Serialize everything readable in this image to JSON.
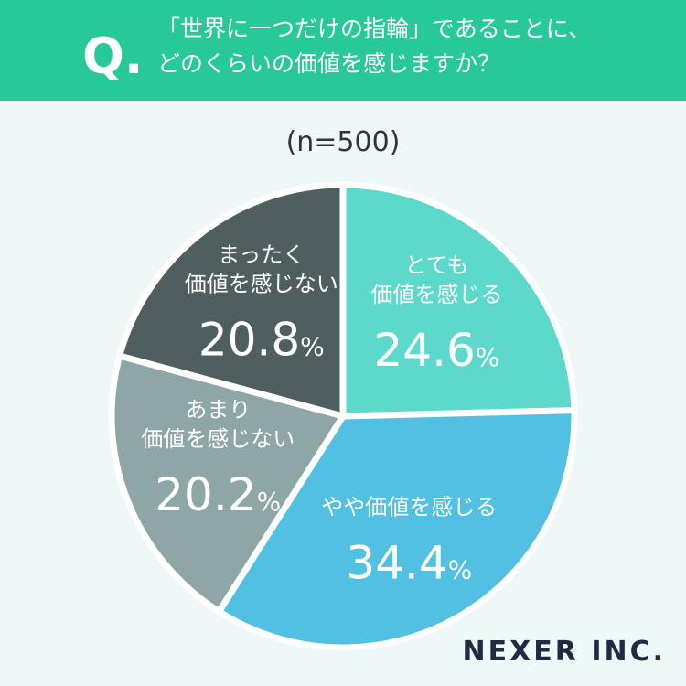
{
  "mark": "Q.",
  "logo": "NEXER INC.",
  "chart_data": {
    "type": "pie",
    "title": "「世界に一つだけの指輪」であることに、\nどのくらいの価値を感じますか？",
    "subtitle": "(n=500)",
    "categories": [
      "とても\n価値を感じる",
      "やや価値を感じる",
      "あまり\n価値を感じない",
      "まったく\n価値を感じない"
    ],
    "values": [
      24.6,
      34.4,
      20.2,
      20.8
    ],
    "value_labels": [
      "24.6%",
      "34.4%",
      "20.2%",
      "20.8%"
    ],
    "colors": [
      "#5dd9cc",
      "#52c0e3",
      "#8fa6a6",
      "#4f5e5e"
    ]
  }
}
